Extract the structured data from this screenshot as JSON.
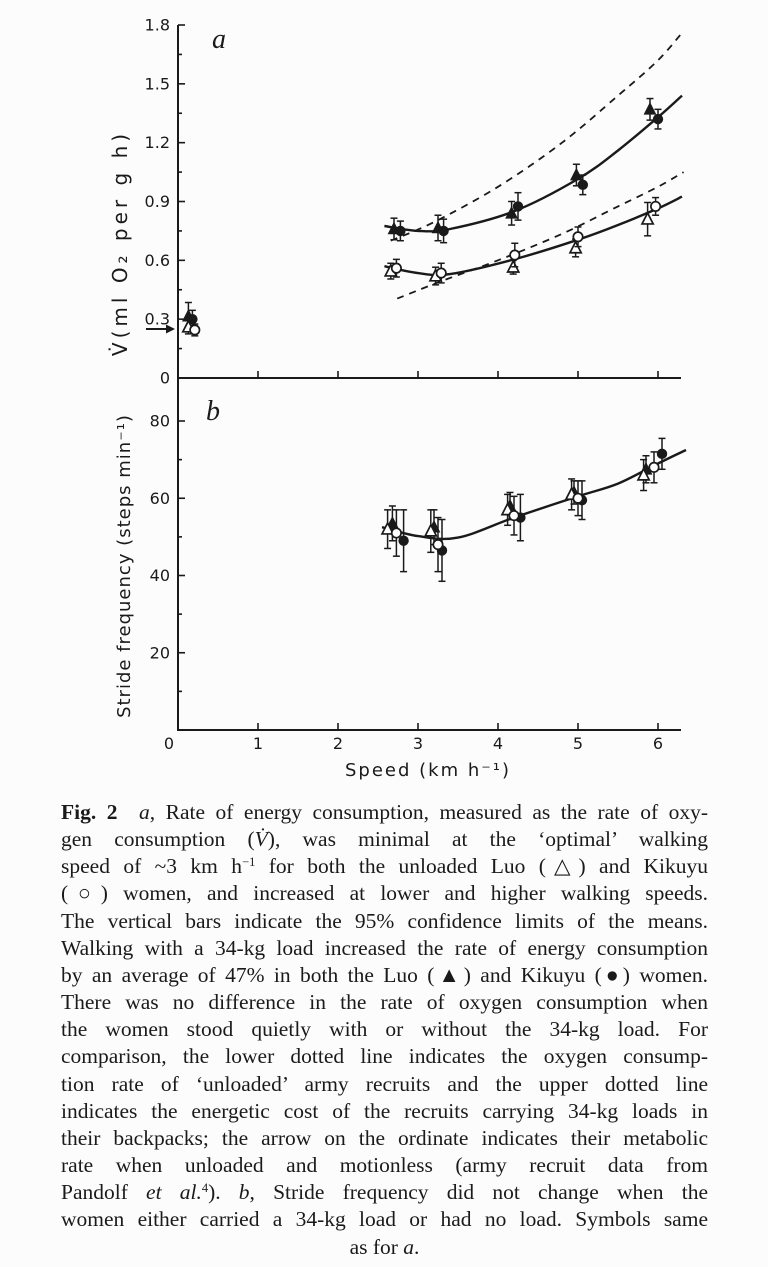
{
  "theme": {
    "paper": "#fcfcfc",
    "ink": "#1a1a1a"
  },
  "chart_data": [
    {
      "id": "a",
      "type": "scatter",
      "panel_label": "a",
      "ylabel": "V̇(ml O₂ per g h)",
      "xlabel": "",
      "xlim": [
        0,
        6.3
      ],
      "ylim": [
        0,
        1.8
      ],
      "yticks": [
        0,
        0.3,
        0.6,
        0.9,
        1.2,
        1.5,
        1.8
      ],
      "ytick_labels": [
        "0",
        "0.3",
        "0.6",
        "0.9",
        "1.2",
        "1.5",
        "1.8"
      ],
      "minor_yticks": [
        0.15,
        0.45,
        0.75,
        1.05,
        1.35,
        1.65
      ],
      "xticks": [
        1,
        2,
        3,
        4,
        5,
        6
      ],
      "xtick_labels": null,
      "ordinate_arrow_y": 0.25,
      "series": [
        {
          "id": "luo-loaded",
          "name": "Luo women, 34-kg load",
          "marker": "triangle-filled",
          "points": [
            [
              0.13,
              0.315,
              0.07
            ],
            [
              2.7,
              0.76,
              0.055
            ],
            [
              3.25,
              0.765,
              0.065
            ],
            [
              4.17,
              0.84,
              0.06
            ],
            [
              4.98,
              1.035,
              0.055
            ],
            [
              5.9,
              1.37,
              0.055
            ]
          ]
        },
        {
          "id": "kikuyu-loaded",
          "name": "Kikuyu women, 34-kg load",
          "marker": "circle-filled",
          "points": [
            [
              0.18,
              0.3,
              0.045
            ],
            [
              2.78,
              0.75,
              0.05
            ],
            [
              3.32,
              0.75,
              0.06
            ],
            [
              4.25,
              0.875,
              0.07
            ],
            [
              5.06,
              0.985,
              0.05
            ],
            [
              6.0,
              1.32,
              0.05
            ]
          ]
        },
        {
          "id": "luo-unloaded",
          "name": "Luo women, unloaded",
          "marker": "triangle-open",
          "points": [
            [
              0.13,
              0.26,
              0.035
            ],
            [
              2.66,
              0.545,
              0.04
            ],
            [
              3.22,
              0.52,
              0.045
            ],
            [
              4.19,
              0.565,
              0.035
            ],
            [
              4.97,
              0.663,
              0.045
            ],
            [
              5.87,
              0.81,
              0.085
            ]
          ]
        },
        {
          "id": "kikuyu-unloaded",
          "name": "Kikuyu women, unloaded",
          "marker": "circle-open",
          "points": [
            [
              0.21,
              0.245,
              0.03
            ],
            [
              2.73,
              0.56,
              0.045
            ],
            [
              3.29,
              0.535,
              0.05
            ],
            [
              4.21,
              0.627,
              0.06
            ],
            [
              5.0,
              0.72,
              0.05
            ],
            [
              5.97,
              0.875,
              0.045
            ]
          ]
        }
      ],
      "curves": [
        {
          "id": "loaded-fit",
          "name": "loaded women fitted curve",
          "dashed": false,
          "points": [
            [
              2.58,
              0.775
            ],
            [
              3.0,
              0.75
            ],
            [
              3.4,
              0.76
            ],
            [
              4.2,
              0.85
            ],
            [
              5.0,
              1.015
            ],
            [
              5.5,
              1.16
            ],
            [
              6.0,
              1.33
            ],
            [
              6.3,
              1.44
            ]
          ]
        },
        {
          "id": "unloaded-fit",
          "name": "unloaded women fitted curve",
          "dashed": false,
          "points": [
            [
              2.58,
              0.57
            ],
            [
              3.0,
              0.535
            ],
            [
              3.4,
              0.53
            ],
            [
              4.2,
              0.605
            ],
            [
              5.0,
              0.705
            ],
            [
              5.5,
              0.78
            ],
            [
              6.0,
              0.865
            ],
            [
              6.3,
              0.925
            ]
          ]
        },
        {
          "id": "army-loaded",
          "name": "army recruits carrying 34-kg loads (upper dotted line)",
          "dashed": true,
          "points": [
            [
              2.66,
              0.7
            ],
            [
              3.2,
              0.795
            ],
            [
              4.0,
              0.975
            ],
            [
              4.8,
              1.2
            ],
            [
              5.5,
              1.44
            ],
            [
              6.0,
              1.62
            ],
            [
              6.32,
              1.77
            ]
          ]
        },
        {
          "id": "army-unloaded",
          "name": "unloaded army recruits (lower dotted line)",
          "dashed": true,
          "points": [
            [
              2.74,
              0.405
            ],
            [
              3.3,
              0.495
            ],
            [
              4.0,
              0.6
            ],
            [
              4.8,
              0.735
            ],
            [
              5.5,
              0.875
            ],
            [
              6.0,
              0.975
            ],
            [
              6.32,
              1.05
            ]
          ]
        }
      ]
    },
    {
      "id": "b",
      "type": "scatter",
      "panel_label": "b",
      "ylabel": "Stride frequency (steps min⁻¹)",
      "xlabel": "Speed (km h⁻¹)",
      "xlim": [
        0,
        6.3
      ],
      "ylim": [
        0,
        89
      ],
      "yticks": [
        20,
        40,
        60,
        80
      ],
      "ytick_labels": [
        "20",
        "40",
        "60",
        "80"
      ],
      "minor_yticks": [
        10,
        30,
        50,
        70
      ],
      "xticks": [
        0,
        1,
        2,
        3,
        4,
        5,
        6
      ],
      "xtick_labels": [
        "0",
        "1",
        "2",
        "3",
        "4",
        "5",
        "6"
      ],
      "series": [
        {
          "id": "luo-loaded",
          "name": "Luo women, 34-kg load",
          "marker": "triangle-filled",
          "points": [
            [
              2.68,
              53.5,
              4.5
            ],
            [
              3.2,
              52.5,
              4.5
            ],
            [
              4.15,
              58.0,
              3.5
            ],
            [
              4.95,
              61.5,
              3.0
            ],
            [
              5.85,
              67.5,
              3.5
            ]
          ]
        },
        {
          "id": "kikuyu-loaded",
          "name": "Kikuyu women, 34-kg load",
          "marker": "circle-filled",
          "points": [
            [
              2.82,
              49.0,
              8.0
            ],
            [
              3.3,
              46.5,
              8.0
            ],
            [
              4.28,
              55.0,
              6.0
            ],
            [
              5.05,
              59.5,
              5.0
            ],
            [
              6.05,
              71.5,
              4.0
            ]
          ]
        },
        {
          "id": "luo-unloaded",
          "name": "Luo women, unloaded",
          "marker": "triangle-open",
          "points": [
            [
              2.62,
              52.0,
              5.0
            ],
            [
              3.16,
              51.5,
              5.5
            ],
            [
              4.12,
              57.0,
              4.0
            ],
            [
              4.92,
              61.0,
              4.0
            ],
            [
              5.82,
              66.0,
              4.0
            ]
          ]
        },
        {
          "id": "kikuyu-unloaded",
          "name": "Kikuyu women, unloaded",
          "marker": "circle-open",
          "points": [
            [
              2.73,
              51.0,
              6.0
            ],
            [
              3.25,
              48.0,
              7.0
            ],
            [
              4.2,
              55.5,
              5.0
            ],
            [
              5.0,
              60.0,
              4.5
            ],
            [
              5.95,
              68.0,
              4.0
            ]
          ]
        }
      ],
      "curves": [
        {
          "id": "stride-fit",
          "name": "stride frequency fitted curve",
          "dashed": false,
          "points": [
            [
              2.55,
              52.5
            ],
            [
              3.0,
              50.2
            ],
            [
              3.5,
              49.8
            ],
            [
              4.2,
              55.0
            ],
            [
              5.0,
              60.5
            ],
            [
              5.5,
              63.8
            ],
            [
              6.0,
              69.0
            ],
            [
              6.35,
              72.5
            ]
          ]
        }
      ]
    }
  ],
  "caption": {
    "lines": [
      {
        "align": "justify",
        "segments": [
          {
            "t": "Fig. 2",
            "s": "b"
          },
          {
            "t": " ",
            "s": ""
          },
          {
            "t": "a",
            "s": "i"
          },
          {
            "t": ", Rate of energy consumption, measured as the rate of oxy-",
            "s": ""
          }
        ]
      },
      {
        "align": "justify",
        "segments": [
          {
            "t": "gen consumption (",
            "s": ""
          },
          {
            "t": "V̇",
            "s": "i"
          },
          {
            "t": "), was minimal at the ‘optimal’ walking",
            "s": ""
          }
        ]
      },
      {
        "align": "justify",
        "segments": [
          {
            "t": "speed of ~3 km h",
            "s": ""
          },
          {
            "t": "−1",
            "s": "sup"
          },
          {
            "t": " for both the unloaded Luo (△) and Kikuyu",
            "s": ""
          }
        ]
      },
      {
        "align": "justify",
        "segments": [
          {
            "t": "(○) women, and increased at lower and higher walking speeds.",
            "s": ""
          }
        ]
      },
      {
        "align": "justify",
        "segments": [
          {
            "t": "The vertical bars indicate the 95% confidence limits of the means.",
            "s": ""
          }
        ]
      },
      {
        "align": "justify",
        "segments": [
          {
            "t": "Walking with a 34-kg load increased the rate of energy consumption",
            "s": ""
          }
        ]
      },
      {
        "align": "justify",
        "segments": [
          {
            "t": "by an average of 47% in both the Luo (▲) and Kikuyu (●) women.",
            "s": ""
          }
        ]
      },
      {
        "align": "justify",
        "segments": [
          {
            "t": "There was no difference in the rate of oxygen consumption when",
            "s": ""
          }
        ]
      },
      {
        "align": "justify",
        "segments": [
          {
            "t": "the women stood quietly with or without the 34-kg load. For",
            "s": ""
          }
        ]
      },
      {
        "align": "justify",
        "segments": [
          {
            "t": "comparison, the lower dotted line indicates the oxygen consump-",
            "s": ""
          }
        ]
      },
      {
        "align": "justify",
        "segments": [
          {
            "t": "tion rate of ‘unloaded’ army recruits and the upper dotted line",
            "s": ""
          }
        ]
      },
      {
        "align": "justify",
        "segments": [
          {
            "t": "indicates the energetic cost of the recruits carrying 34-kg loads in",
            "s": ""
          }
        ]
      },
      {
        "align": "justify",
        "segments": [
          {
            "t": "their backpacks; the arrow on the ordinate indicates their metabolic",
            "s": ""
          }
        ]
      },
      {
        "align": "justify",
        "segments": [
          {
            "t": "rate when unloaded and motionless (army recruit data from",
            "s": ""
          }
        ]
      },
      {
        "align": "justify",
        "segments": [
          {
            "t": "Pandolf ",
            "s": ""
          },
          {
            "t": "et al.",
            "s": "i"
          },
          {
            "t": "4",
            "s": "sup"
          },
          {
            "t": "). ",
            "s": ""
          },
          {
            "t": "b",
            "s": "i"
          },
          {
            "t": ", Stride frequency did not change when the",
            "s": ""
          }
        ]
      },
      {
        "align": "justify",
        "segments": [
          {
            "t": "women either carried a 34-kg load or had no load. Symbols same",
            "s": ""
          }
        ]
      },
      {
        "align": "center",
        "segments": [
          {
            "t": "as for ",
            "s": ""
          },
          {
            "t": "a",
            "s": "i"
          },
          {
            "t": ".",
            "s": ""
          }
        ]
      }
    ]
  }
}
